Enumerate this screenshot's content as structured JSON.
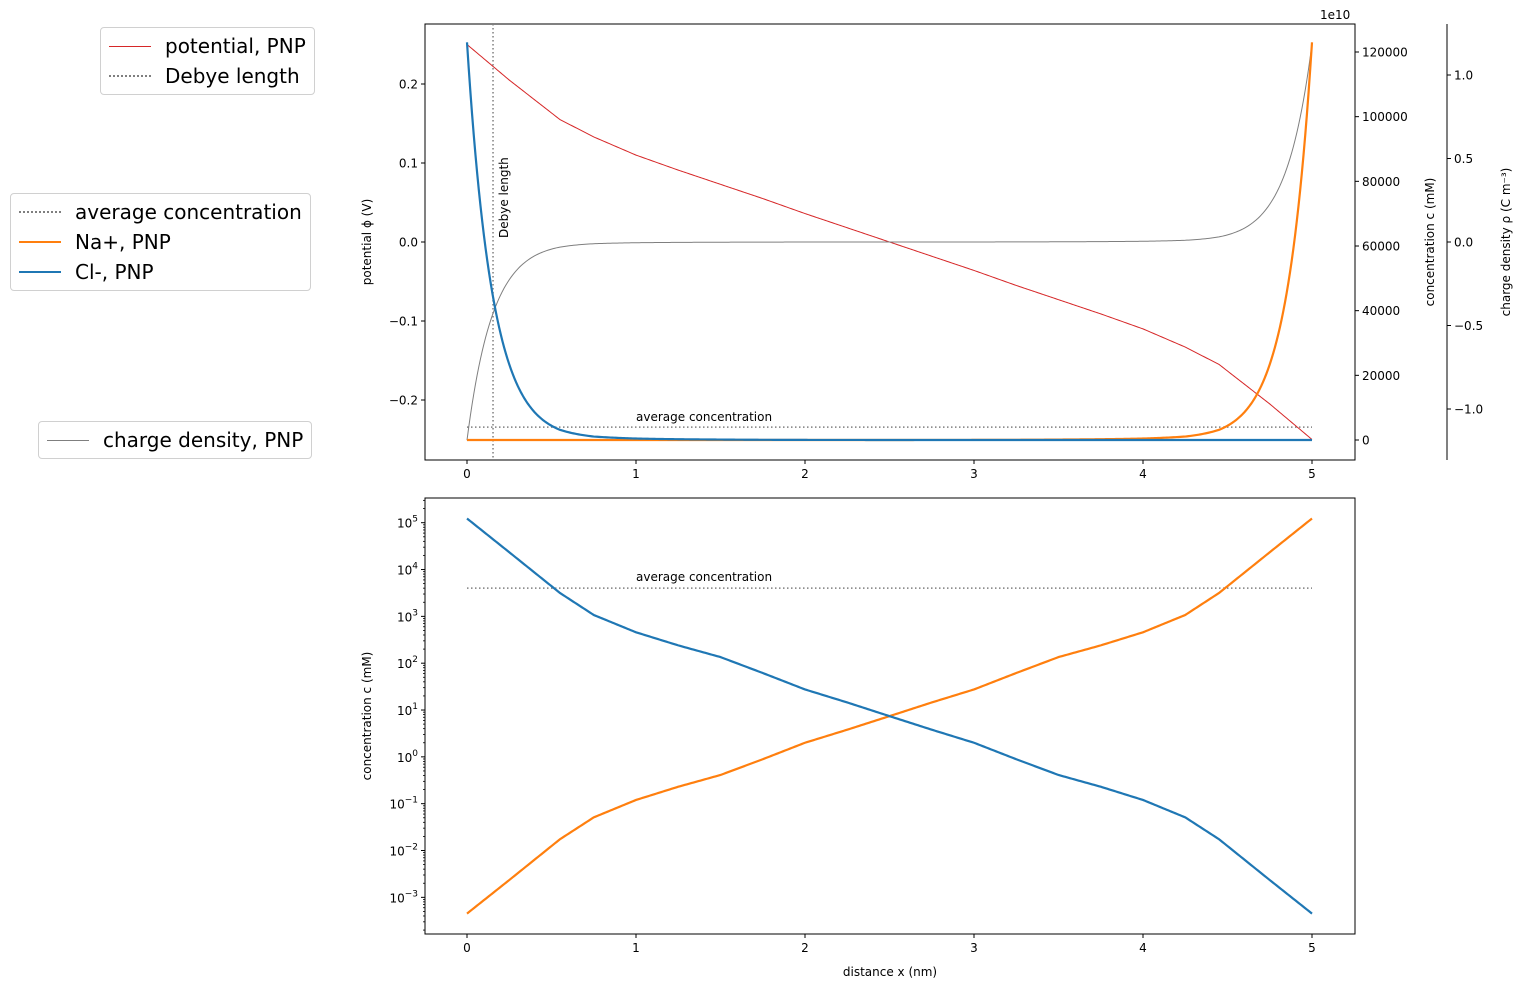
{
  "colors": {
    "potential": "#d62728",
    "na": "#ff7f0e",
    "cl": "#1f77b4",
    "rho": "#7f7f7f",
    "guide": "#7f7f7f"
  },
  "legends": [
    {
      "items": [
        {
          "label": "potential, PNP",
          "style": "thin-solid",
          "color": "#d62728"
        },
        {
          "label": "Debye length",
          "style": "dotted",
          "color": "#7f7f7f"
        }
      ]
    },
    {
      "items": [
        {
          "label": "average concentration",
          "style": "dotted",
          "color": "#7f7f7f"
        },
        {
          "label": "Na+, PNP",
          "style": "thick-solid",
          "color": "#ff7f0e"
        },
        {
          "label": "Cl-, PNP",
          "style": "thick-solid",
          "color": "#1f77b4"
        }
      ]
    },
    {
      "items": [
        {
          "label": "charge density, PNP",
          "style": "thin-solid",
          "color": "#7f7f7f"
        }
      ]
    }
  ],
  "chart_data": [
    {
      "type": "line",
      "title": "",
      "xlim": [
        -0.25,
        5.25
      ],
      "xticks": [
        0,
        1,
        2,
        3,
        4,
        5
      ],
      "xtick_labels": [
        "0",
        "1",
        "2",
        "3",
        "4",
        "5"
      ],
      "left_axis": {
        "label": "potential ϕ (V)",
        "ylim": [
          -0.276,
          0.276
        ],
        "ticks": [
          -0.2,
          -0.1,
          0.0,
          0.1,
          0.2
        ],
        "tick_labels": [
          "−0.2",
          "−0.1",
          "0.0",
          "0.1",
          "0.2"
        ]
      },
      "right_axis_1": {
        "label": "concentration c (mM)",
        "ylim": [
          -6200,
          128700
        ],
        "ticks": [
          0,
          20000,
          40000,
          60000,
          80000,
          100000,
          120000
        ],
        "tick_labels": [
          "0",
          "20000",
          "40000",
          "60000",
          "80000",
          "100000",
          "120000"
        ]
      },
      "right_axis_2": {
        "label": "charge density ρ (C m⁻³)",
        "offset_text": "1e10",
        "ylim": [
          -1.305,
          1.305
        ],
        "ticks": [
          -1.0,
          -0.5,
          0.0,
          0.5,
          1.0
        ],
        "tick_labels": [
          "−1.0",
          "−0.5",
          "0.0",
          "0.5",
          "1.0"
        ]
      },
      "x": [
        0,
        0.25,
        0.55,
        0.75,
        1,
        1.25,
        1.5,
        1.75,
        2,
        2.25,
        2.5,
        2.75,
        3,
        3.25,
        3.5,
        3.75,
        4,
        4.25,
        4.45,
        4.75,
        5
      ],
      "series": [
        {
          "name": "potential, PNP",
          "axis": "left",
          "values": [
            0.25,
            0.205,
            0.155,
            0.133,
            0.11,
            0.091,
            0.073,
            0.055,
            0.036,
            0.018,
            0,
            -0.018,
            -0.036,
            -0.055,
            -0.073,
            -0.091,
            -0.11,
            -0.133,
            -0.155,
            -0.205,
            -0.25
          ]
        },
        {
          "name": "charge density, PNP",
          "axis": "right_2",
          "values": [
            -1.187,
            -0.226,
            -0.0305,
            -0.0103,
            -0.0044,
            -0.0023,
            -0.0013,
            -0.00059,
            -0.00025,
            -0.0001,
            0,
            0.0001,
            0.00025,
            0.00059,
            0.0013,
            0.0023,
            0.0044,
            0.0103,
            0.0305,
            0.226,
            1.187
          ]
        },
        {
          "name": "Na+, PNP",
          "axis": "right_1",
          "values": [
            0.00045,
            0.00234,
            0.0174,
            0.051,
            0.12,
            0.23,
            0.41,
            0.89,
            2.0,
            3.8,
            7.4,
            14.5,
            27.5,
            61.7,
            135,
            240,
            457,
            1070,
            3160,
            23400,
            123000
          ]
        },
        {
          "name": "Cl-, PNP",
          "axis": "right_1",
          "values": [
            123000,
            23400,
            3160,
            1070,
            457,
            240,
            135,
            61.7,
            27.5,
            14.5,
            7.4,
            3.8,
            2.0,
            0.89,
            0.41,
            0.23,
            0.12,
            0.051,
            0.0174,
            0.00234,
            0.00045
          ]
        }
      ],
      "average_concentration": {
        "value": 4000,
        "label": "average concentration",
        "label_x": 1
      },
      "debye_length": {
        "x": 0.154,
        "label": "Debye length"
      }
    },
    {
      "type": "line",
      "title": "",
      "yscale": "log",
      "xlim": [
        -0.25,
        5.25
      ],
      "ylim": [
        0.000166,
        331000
      ],
      "xlabel": "distance x (nm)",
      "ylabel": "concentration c (mM)",
      "xticks": [
        0,
        1,
        2,
        3,
        4,
        5
      ],
      "xtick_labels": [
        "0",
        "1",
        "2",
        "3",
        "4",
        "5"
      ],
      "ytick_exponents": [
        "5",
        "4",
        "3",
        "2",
        "1",
        "0",
        "−1",
        "−2",
        "−3"
      ],
      "ytick_base": "10",
      "series_ref": [
        "Na+, PNP",
        "Cl-, PNP"
      ],
      "average_concentration": {
        "value": 4000,
        "label": "average concentration",
        "label_x": 1
      }
    }
  ]
}
